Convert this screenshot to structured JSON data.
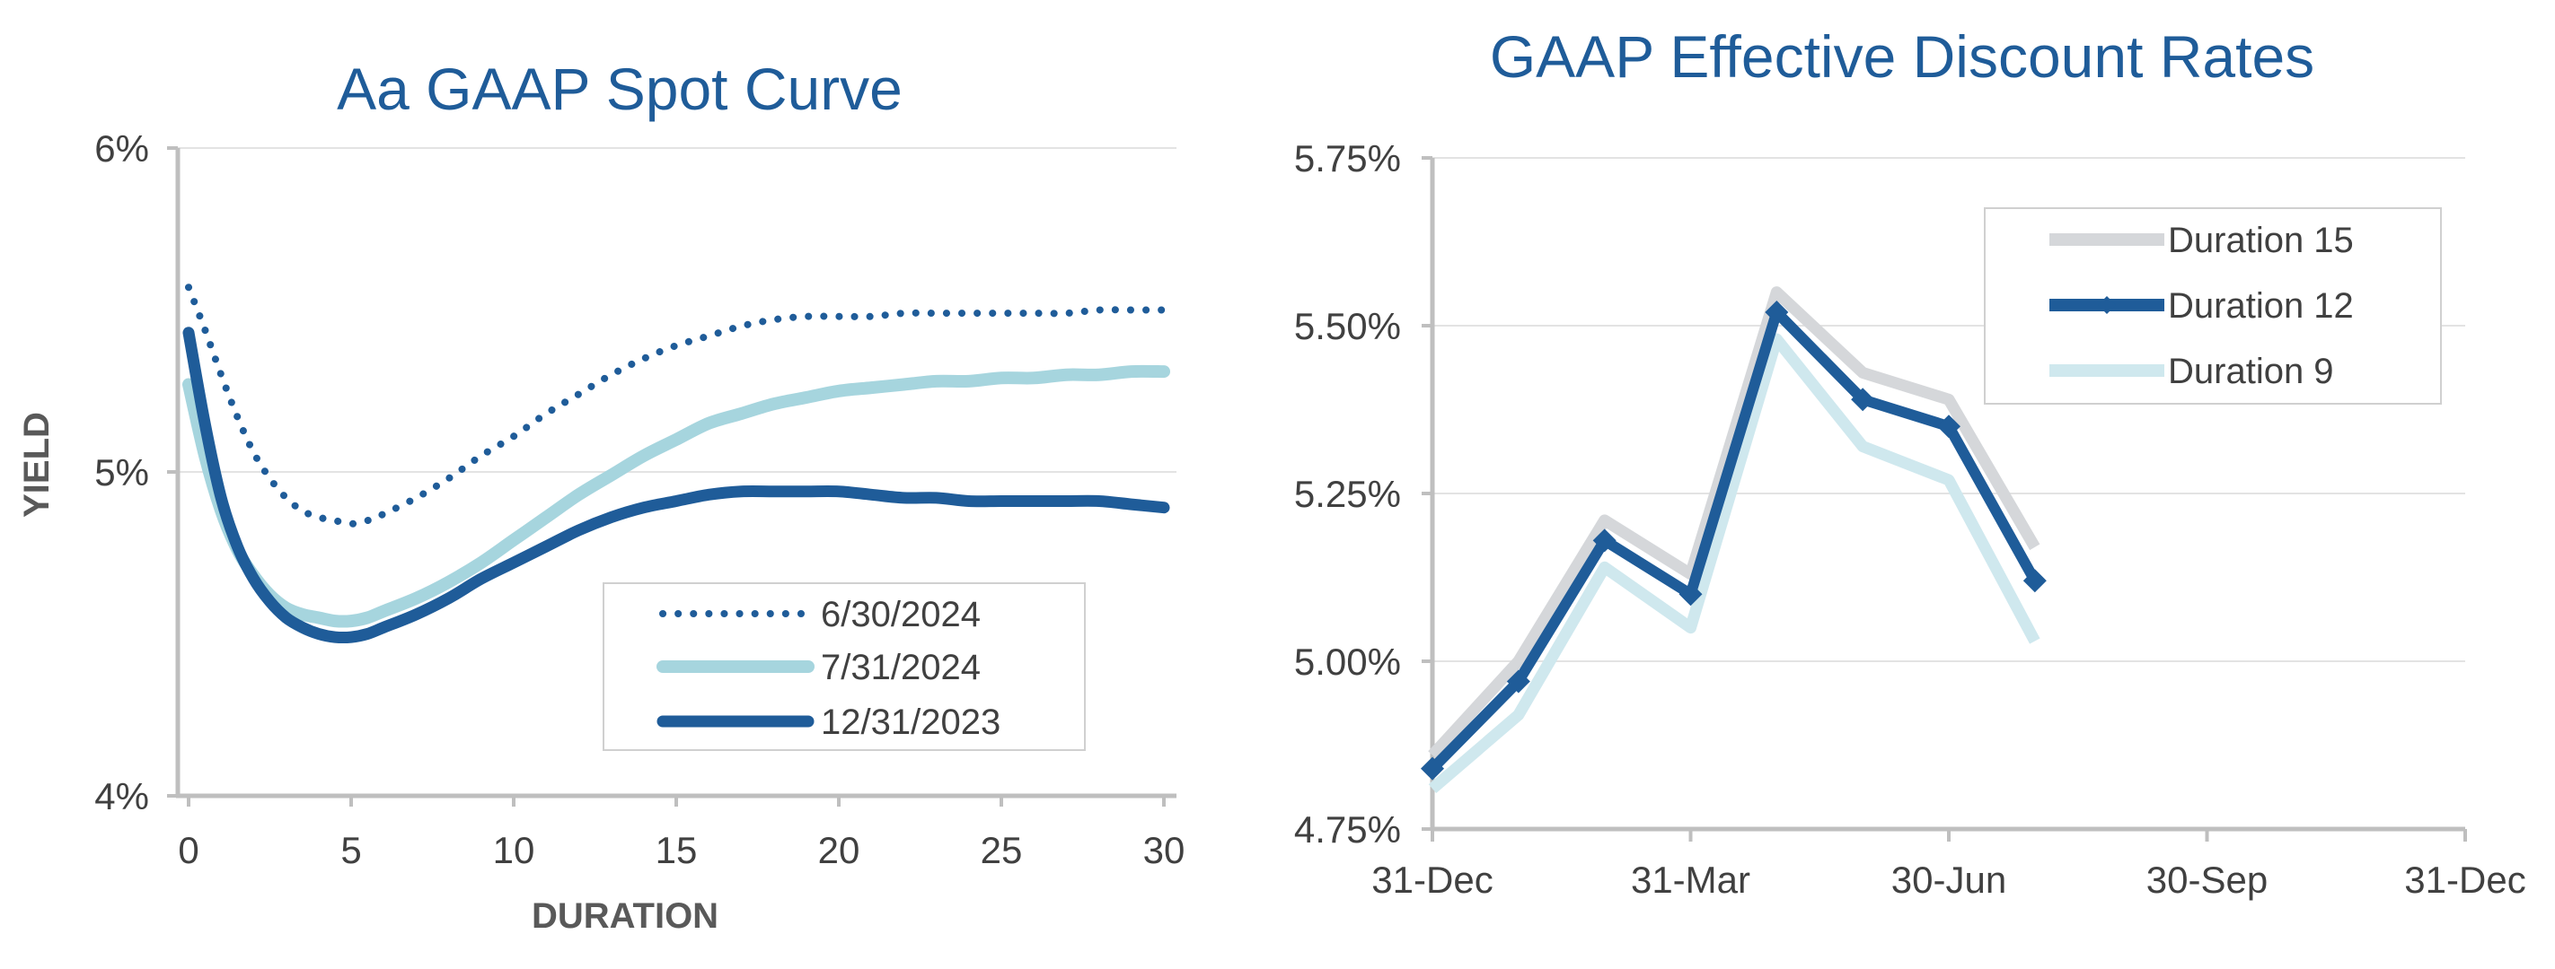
{
  "colors": {
    "dark_blue": "#1f5c99",
    "light_blue": "#a6d5de",
    "pale_blue": "#cfe8ee",
    "gray": "#d5d7da",
    "title": "#1f5c99"
  },
  "chart_data": [
    {
      "type": "line",
      "title": "Aa GAAP Spot Curve",
      "xlabel": "DURATION",
      "ylabel": "YIELD",
      "xlim": [
        0,
        30
      ],
      "ylim": [
        4,
        6
      ],
      "xticks": [
        0,
        5,
        10,
        15,
        20,
        25,
        30
      ],
      "xtick_labels": [
        "0",
        "5",
        "10",
        "15",
        "20",
        "25",
        "30"
      ],
      "yticks": [
        4,
        5,
        6
      ],
      "ytick_labels": [
        "4%",
        "5%",
        "6%"
      ],
      "grid": true,
      "legend_position": "bottom-right",
      "series": [
        {
          "name": "6/30/2024",
          "style": "dotted",
          "color": "#1f5c99",
          "x": [
            0,
            0.5,
            1,
            1.5,
            2,
            2.5,
            3,
            3.5,
            4,
            4.5,
            5,
            5.5,
            6,
            7,
            8,
            9,
            10,
            11,
            12,
            13,
            14,
            15,
            16,
            17,
            18,
            19,
            20,
            21,
            22,
            23,
            24,
            25,
            26,
            27,
            28,
            29,
            30
          ],
          "y": [
            5.57,
            5.44,
            5.3,
            5.17,
            5.06,
            4.98,
            4.92,
            4.88,
            4.86,
            4.85,
            4.84,
            4.85,
            4.87,
            4.92,
            4.98,
            5.05,
            5.11,
            5.18,
            5.24,
            5.3,
            5.35,
            5.39,
            5.42,
            5.45,
            5.47,
            5.48,
            5.48,
            5.48,
            5.49,
            5.49,
            5.49,
            5.49,
            5.49,
            5.49,
            5.5,
            5.5,
            5.5
          ]
        },
        {
          "name": "7/31/2024",
          "style": "solid",
          "color": "#a6d5de",
          "x": [
            0,
            0.5,
            1,
            1.5,
            2,
            2.5,
            3,
            3.5,
            4,
            4.5,
            5,
            5.5,
            6,
            7,
            8,
            9,
            10,
            11,
            12,
            13,
            14,
            15,
            16,
            17,
            18,
            19,
            20,
            21,
            22,
            23,
            24,
            25,
            26,
            27,
            28,
            29,
            30
          ],
          "y": [
            5.27,
            5.05,
            4.88,
            4.76,
            4.68,
            4.62,
            4.58,
            4.56,
            4.55,
            4.54,
            4.54,
            4.55,
            4.57,
            4.61,
            4.66,
            4.72,
            4.79,
            4.86,
            4.93,
            4.99,
            5.05,
            5.1,
            5.15,
            5.18,
            5.21,
            5.23,
            5.25,
            5.26,
            5.27,
            5.28,
            5.28,
            5.29,
            5.29,
            5.3,
            5.3,
            5.31,
            5.31
          ]
        },
        {
          "name": "12/31/2023",
          "style": "solid",
          "color": "#1f5c99",
          "x": [
            0,
            0.5,
            1,
            1.5,
            2,
            2.5,
            3,
            3.5,
            4,
            4.5,
            5,
            5.5,
            6,
            7,
            8,
            9,
            10,
            11,
            12,
            13,
            14,
            15,
            16,
            17,
            18,
            19,
            20,
            21,
            22,
            23,
            24,
            25,
            26,
            27,
            28,
            29,
            30
          ],
          "y": [
            5.43,
            5.15,
            4.92,
            4.77,
            4.67,
            4.6,
            4.55,
            4.52,
            4.5,
            4.49,
            4.49,
            4.5,
            4.52,
            4.56,
            4.61,
            4.67,
            4.72,
            4.77,
            4.82,
            4.86,
            4.89,
            4.91,
            4.93,
            4.94,
            4.94,
            4.94,
            4.94,
            4.93,
            4.92,
            4.92,
            4.91,
            4.91,
            4.91,
            4.91,
            4.91,
            4.9,
            4.89
          ]
        }
      ]
    },
    {
      "type": "line",
      "title": "GAAP Effective Discount Rates",
      "xlabel": "",
      "ylabel": "",
      "ylim": [
        4.75,
        5.75
      ],
      "yticks": [
        4.75,
        5.0,
        5.25,
        5.5,
        5.75
      ],
      "ytick_labels": [
        "4.75%",
        "5.00%",
        "5.25%",
        "5.50%",
        "5.75%"
      ],
      "xlim": [
        0,
        12
      ],
      "xticks": [
        0,
        3,
        6,
        9,
        12
      ],
      "xtick_labels": [
        "31-Dec",
        "31-Mar",
        "30-Jun",
        "30-Sep",
        "31-Dec"
      ],
      "grid": true,
      "legend_position": "top-right",
      "x": [
        0,
        1,
        2,
        3,
        4,
        5,
        6,
        7
      ],
      "series": [
        {
          "name": "Duration 15",
          "marker": "none",
          "color": "#d5d7da",
          "values": [
            4.86,
            5.0,
            5.21,
            5.13,
            5.55,
            5.43,
            5.39,
            5.17
          ]
        },
        {
          "name": "Duration 12",
          "marker": "diamond",
          "color": "#1f5c99",
          "values": [
            4.84,
            4.97,
            5.18,
            5.1,
            5.52,
            5.39,
            5.35,
            5.12
          ]
        },
        {
          "name": "Duration 9",
          "marker": "none",
          "color": "#cfe8ee",
          "values": [
            4.81,
            4.92,
            5.14,
            5.05,
            5.48,
            5.32,
            5.27,
            5.03
          ]
        }
      ]
    }
  ]
}
